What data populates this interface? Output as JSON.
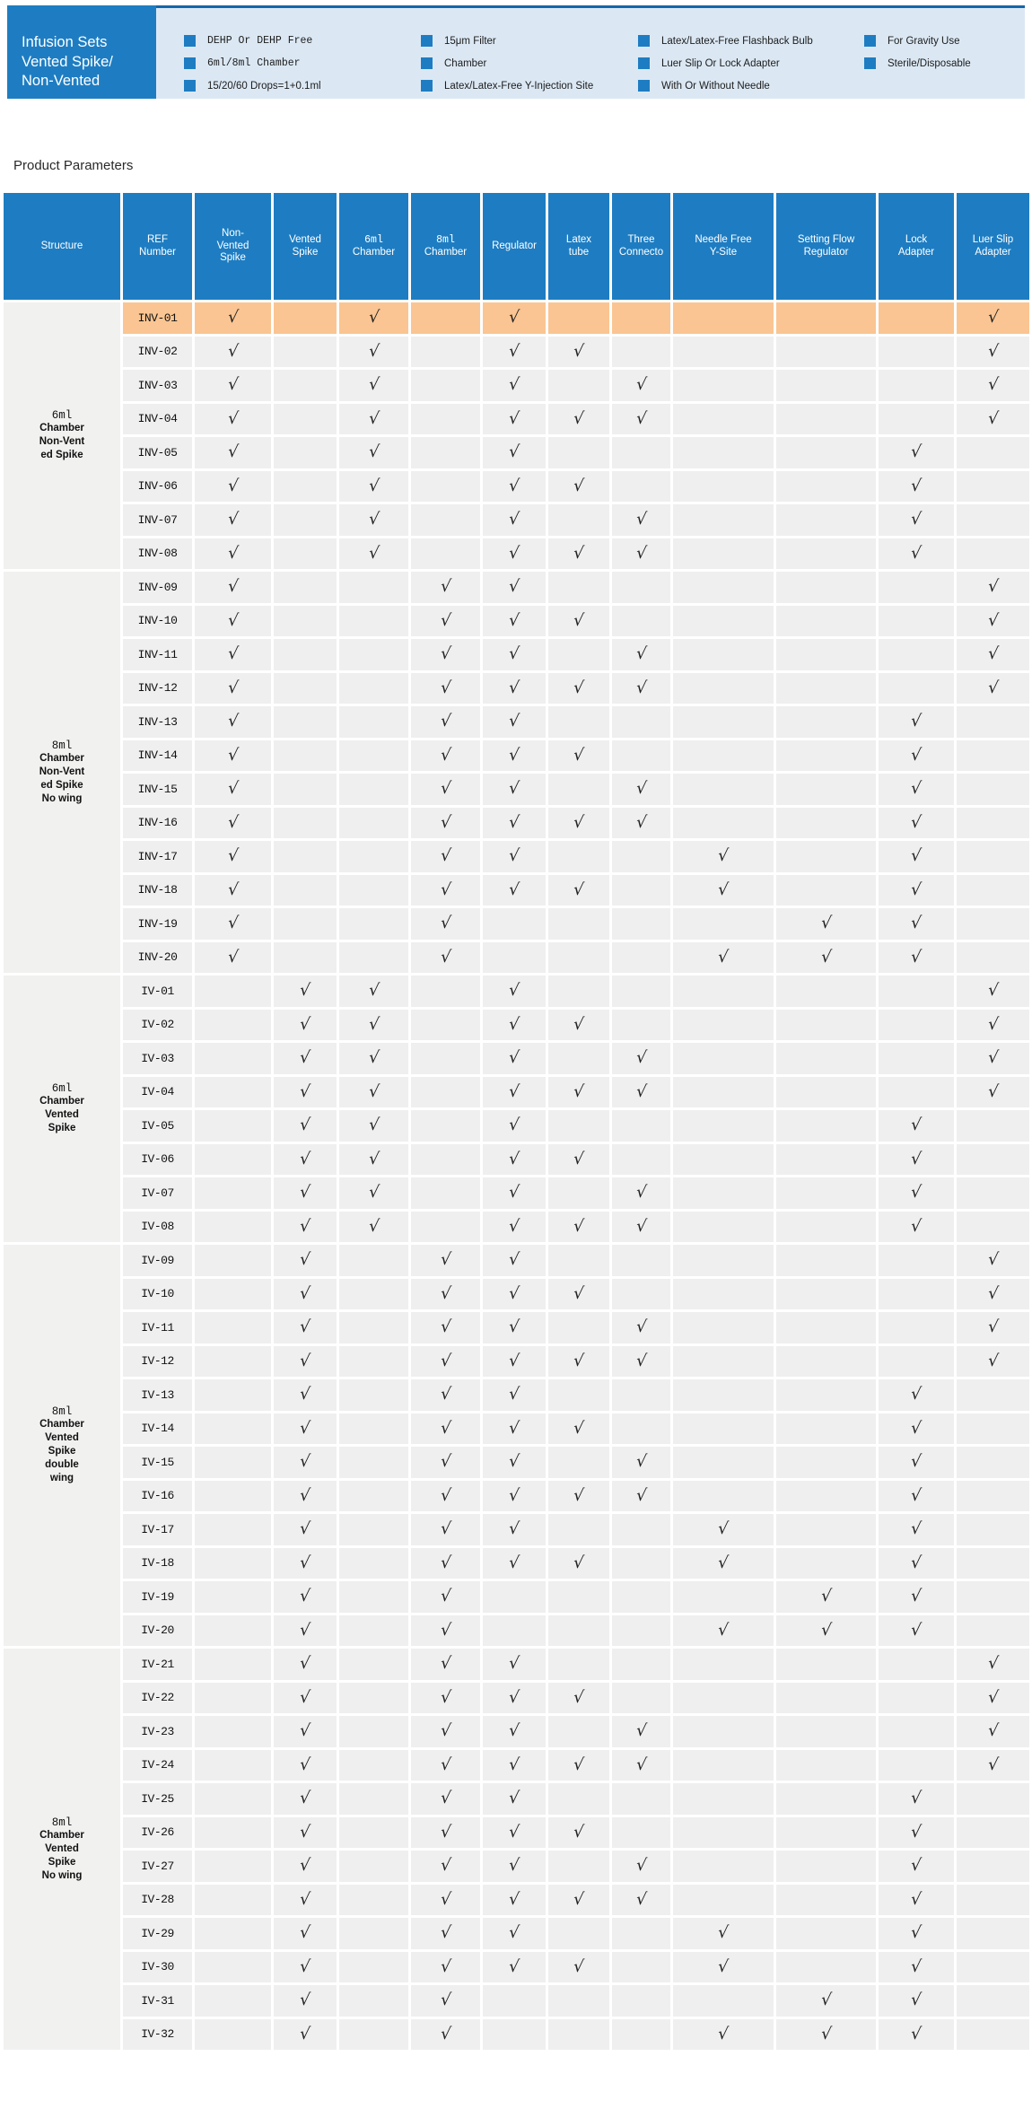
{
  "hero": {
    "title": "Infusion Sets\n Vented Spike/\nNon-Vented",
    "features": {
      "columns": [
        {
          "items": [
            {
              "text": "DEHP Or DEHP Free",
              "mono": true
            },
            {
              "text": "6ml/8ml Chamber",
              "mono": true
            },
            {
              "text": "15/20/60 Drops=1+0.1ml",
              "mono": false
            }
          ]
        },
        {
          "items": [
            {
              "text": "15μm Filter",
              "mono": false
            },
            {
              "text": "Chamber",
              "mono": false
            },
            {
              "text": "Latex/Latex-Free Y-Injection Site",
              "mono": false
            }
          ]
        },
        {
          "items": [
            {
              "text": "Latex/Latex-Free Flashback Bulb",
              "mono": false
            },
            {
              "text": "Luer Slip Or Lock Adapter",
              "mono": false
            },
            {
              "text": "With Or Without Needle",
              "mono": false
            }
          ]
        },
        {
          "items": [
            {
              "text": "For Gravity Use",
              "mono": false
            },
            {
              "text": "Sterile/Disposable",
              "mono": false
            }
          ]
        }
      ]
    }
  },
  "section_title": "Product Parameters",
  "colors": {
    "header_blue": "#1e7dc2",
    "panel_top_line": "#1565a8",
    "panel_bg": "#dbe8f4",
    "bullet_blue": "#1e7dc2",
    "highlight_row": "#fac592",
    "row_bg": "#efefef",
    "structure_bg": "#f1f1f0",
    "header_text": "#ffffff",
    "check_color": "#222222"
  },
  "table": {
    "check_mark": "√",
    "columns": [
      {
        "id": "structure",
        "label": "Structure"
      },
      {
        "id": "ref",
        "label": "REF\nNumber"
      },
      {
        "id": "non_vented_spike",
        "label": "Non-\nVented\nSpike"
      },
      {
        "id": "vented_spike",
        "label": "Vented\nSpike"
      },
      {
        "id": "chamber_6ml",
        "label": "6ml\nChamber",
        "mono_first": true
      },
      {
        "id": "chamber_8ml",
        "label": "8ml\nChamber",
        "mono_first": true
      },
      {
        "id": "regulator",
        "label": "Regulator"
      },
      {
        "id": "latex_tube",
        "label": "Latex\ntube"
      },
      {
        "id": "three_connector",
        "label": "Three\nConnecto"
      },
      {
        "id": "needle_free_y_site",
        "label": "Needle Free\nY-Site"
      },
      {
        "id": "setting_flow_regulator",
        "label": "Setting Flow\nRegulator"
      },
      {
        "id": "lock_adapter",
        "label": "Lock\nAdapter"
      },
      {
        "id": "luer_slip_adapter",
        "label": "Luer Slip\nAdapter"
      }
    ],
    "groups": [
      {
        "label": "6ml\nChamber\nNon-Vent\ned Spike",
        "rows": [
          {
            "ref": "INV-01",
            "highlight": true,
            "checks": [
              "non_vented_spike",
              "chamber_6ml",
              "regulator",
              "luer_slip_adapter"
            ]
          },
          {
            "ref": "INV-02",
            "checks": [
              "non_vented_spike",
              "chamber_6ml",
              "regulator",
              "latex_tube",
              "luer_slip_adapter"
            ]
          },
          {
            "ref": "INV-03",
            "checks": [
              "non_vented_spike",
              "chamber_6ml",
              "regulator",
              "three_connector",
              "luer_slip_adapter"
            ]
          },
          {
            "ref": "INV-04",
            "checks": [
              "non_vented_spike",
              "chamber_6ml",
              "regulator",
              "latex_tube",
              "three_connector",
              "luer_slip_adapter"
            ]
          },
          {
            "ref": "INV-05",
            "checks": [
              "non_vented_spike",
              "chamber_6ml",
              "regulator",
              "lock_adapter"
            ]
          },
          {
            "ref": "INV-06",
            "checks": [
              "non_vented_spike",
              "chamber_6ml",
              "regulator",
              "latex_tube",
              "lock_adapter"
            ]
          },
          {
            "ref": "INV-07",
            "checks": [
              "non_vented_spike",
              "chamber_6ml",
              "regulator",
              "three_connector",
              "lock_adapter"
            ]
          },
          {
            "ref": "INV-08",
            "checks": [
              "non_vented_spike",
              "chamber_6ml",
              "regulator",
              "latex_tube",
              "three_connector",
              "lock_adapter"
            ]
          }
        ]
      },
      {
        "label": "8ml\nChamber\nNon-Vent\ned Spike\nNo wing",
        "rows": [
          {
            "ref": "INV-09",
            "checks": [
              "non_vented_spike",
              "chamber_8ml",
              "regulator",
              "luer_slip_adapter"
            ]
          },
          {
            "ref": "INV-10",
            "checks": [
              "non_vented_spike",
              "chamber_8ml",
              "regulator",
              "latex_tube",
              "luer_slip_adapter"
            ]
          },
          {
            "ref": "INV-11",
            "checks": [
              "non_vented_spike",
              "chamber_8ml",
              "regulator",
              "three_connector",
              "luer_slip_adapter"
            ]
          },
          {
            "ref": "INV-12",
            "checks": [
              "non_vented_spike",
              "chamber_8ml",
              "regulator",
              "latex_tube",
              "three_connector",
              "luer_slip_adapter"
            ]
          },
          {
            "ref": "INV-13",
            "checks": [
              "non_vented_spike",
              "chamber_8ml",
              "regulator",
              "lock_adapter"
            ]
          },
          {
            "ref": "INV-14",
            "checks": [
              "non_vented_spike",
              "chamber_8ml",
              "regulator",
              "latex_tube",
              "lock_adapter"
            ]
          },
          {
            "ref": "INV-15",
            "checks": [
              "non_vented_spike",
              "chamber_8ml",
              "regulator",
              "three_connector",
              "lock_adapter"
            ]
          },
          {
            "ref": "INV-16",
            "checks": [
              "non_vented_spike",
              "chamber_8ml",
              "regulator",
              "latex_tube",
              "three_connector",
              "lock_adapter"
            ]
          },
          {
            "ref": "INV-17",
            "checks": [
              "non_vented_spike",
              "chamber_8ml",
              "regulator",
              "needle_free_y_site",
              "lock_adapter"
            ]
          },
          {
            "ref": "INV-18",
            "checks": [
              "non_vented_spike",
              "chamber_8ml",
              "regulator",
              "latex_tube",
              "needle_free_y_site",
              "lock_adapter"
            ]
          },
          {
            "ref": "INV-19",
            "checks": [
              "non_vented_spike",
              "chamber_8ml",
              "setting_flow_regulator",
              "lock_adapter"
            ]
          },
          {
            "ref": "INV-20",
            "checks": [
              "non_vented_spike",
              "chamber_8ml",
              "needle_free_y_site",
              "setting_flow_regulator",
              "lock_adapter"
            ]
          }
        ]
      },
      {
        "label": "6ml\nChamber\nVented\nSpike",
        "rows": [
          {
            "ref": "IV-01",
            "checks": [
              "vented_spike",
              "chamber_6ml",
              "regulator",
              "luer_slip_adapter"
            ]
          },
          {
            "ref": "IV-02",
            "checks": [
              "vented_spike",
              "chamber_6ml",
              "regulator",
              "latex_tube",
              "luer_slip_adapter"
            ]
          },
          {
            "ref": "IV-03",
            "checks": [
              "vented_spike",
              "chamber_6ml",
              "regulator",
              "three_connector",
              "luer_slip_adapter"
            ]
          },
          {
            "ref": "IV-04",
            "checks": [
              "vented_spike",
              "chamber_6ml",
              "regulator",
              "latex_tube",
              "three_connector",
              "luer_slip_adapter"
            ]
          },
          {
            "ref": "IV-05",
            "checks": [
              "vented_spike",
              "chamber_6ml",
              "regulator",
              "lock_adapter"
            ]
          },
          {
            "ref": "IV-06",
            "checks": [
              "vented_spike",
              "chamber_6ml",
              "regulator",
              "latex_tube",
              "lock_adapter"
            ]
          },
          {
            "ref": "IV-07",
            "checks": [
              "vented_spike",
              "chamber_6ml",
              "regulator",
              "three_connector",
              "lock_adapter"
            ]
          },
          {
            "ref": "IV-08",
            "checks": [
              "vented_spike",
              "chamber_6ml",
              "regulator",
              "latex_tube",
              "three_connector",
              "lock_adapter"
            ]
          }
        ]
      },
      {
        "label": "8ml\nChamber\nVented\nSpike\ndouble\nwing",
        "rows": [
          {
            "ref": "IV-09",
            "checks": [
              "vented_spike",
              "chamber_8ml",
              "regulator",
              "luer_slip_adapter"
            ]
          },
          {
            "ref": "IV-10",
            "checks": [
              "vented_spike",
              "chamber_8ml",
              "regulator",
              "latex_tube",
              "luer_slip_adapter"
            ]
          },
          {
            "ref": "IV-11",
            "checks": [
              "vented_spike",
              "chamber_8ml",
              "regulator",
              "three_connector",
              "luer_slip_adapter"
            ]
          },
          {
            "ref": "IV-12",
            "checks": [
              "vented_spike",
              "chamber_8ml",
              "regulator",
              "latex_tube",
              "three_connector",
              "luer_slip_adapter"
            ]
          },
          {
            "ref": "IV-13",
            "checks": [
              "vented_spike",
              "chamber_8ml",
              "regulator",
              "lock_adapter"
            ]
          },
          {
            "ref": "IV-14",
            "checks": [
              "vented_spike",
              "chamber_8ml",
              "regulator",
              "latex_tube",
              "lock_adapter"
            ]
          },
          {
            "ref": "IV-15",
            "checks": [
              "vented_spike",
              "chamber_8ml",
              "regulator",
              "three_connector",
              "lock_adapter"
            ]
          },
          {
            "ref": "IV-16",
            "checks": [
              "vented_spike",
              "chamber_8ml",
              "regulator",
              "latex_tube",
              "three_connector",
              "lock_adapter"
            ]
          },
          {
            "ref": "IV-17",
            "checks": [
              "vented_spike",
              "chamber_8ml",
              "regulator",
              "needle_free_y_site",
              "lock_adapter"
            ]
          },
          {
            "ref": "IV-18",
            "checks": [
              "vented_spike",
              "chamber_8ml",
              "regulator",
              "latex_tube",
              "needle_free_y_site",
              "lock_adapter"
            ]
          },
          {
            "ref": "IV-19",
            "checks": [
              "vented_spike",
              "chamber_8ml",
              "setting_flow_regulator",
              "lock_adapter"
            ]
          },
          {
            "ref": "IV-20",
            "checks": [
              "vented_spike",
              "chamber_8ml",
              "needle_free_y_site",
              "setting_flow_regulator",
              "lock_adapter"
            ]
          }
        ]
      },
      {
        "label": "8ml\nChamber\nVented\nSpike\nNo wing",
        "rows": [
          {
            "ref": "IV-21",
            "checks": [
              "vented_spike",
              "chamber_8ml",
              "regulator",
              "luer_slip_adapter"
            ]
          },
          {
            "ref": "IV-22",
            "checks": [
              "vented_spike",
              "chamber_8ml",
              "regulator",
              "latex_tube",
              "luer_slip_adapter"
            ]
          },
          {
            "ref": "IV-23",
            "checks": [
              "vented_spike",
              "chamber_8ml",
              "regulator",
              "three_connector",
              "luer_slip_adapter"
            ]
          },
          {
            "ref": "IV-24",
            "checks": [
              "vented_spike",
              "chamber_8ml",
              "regulator",
              "latex_tube",
              "three_connector",
              "luer_slip_adapter"
            ]
          },
          {
            "ref": "IV-25",
            "checks": [
              "vented_spike",
              "chamber_8ml",
              "regulator",
              "lock_adapter"
            ]
          },
          {
            "ref": "IV-26",
            "checks": [
              "vented_spike",
              "chamber_8ml",
              "regulator",
              "latex_tube",
              "lock_adapter"
            ]
          },
          {
            "ref": "IV-27",
            "checks": [
              "vented_spike",
              "chamber_8ml",
              "regulator",
              "three_connector",
              "lock_adapter"
            ]
          },
          {
            "ref": "IV-28",
            "checks": [
              "vented_spike",
              "chamber_8ml",
              "regulator",
              "latex_tube",
              "three_connector",
              "lock_adapter"
            ]
          },
          {
            "ref": "IV-29",
            "checks": [
              "vented_spike",
              "chamber_8ml",
              "regulator",
              "needle_free_y_site",
              "lock_adapter"
            ]
          },
          {
            "ref": "IV-30",
            "checks": [
              "vented_spike",
              "chamber_8ml",
              "regulator",
              "latex_tube",
              "needle_free_y_site",
              "lock_adapter"
            ]
          },
          {
            "ref": "IV-31",
            "checks": [
              "vented_spike",
              "chamber_8ml",
              "setting_flow_regulator",
              "lock_adapter"
            ]
          },
          {
            "ref": "IV-32",
            "checks": [
              "vented_spike",
              "chamber_8ml",
              "needle_free_y_site",
              "setting_flow_regulator",
              "lock_adapter"
            ]
          }
        ]
      }
    ]
  }
}
